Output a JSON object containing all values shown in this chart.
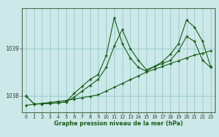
{
  "title": "Graphe pression niveau de la mer (hPa)",
  "background_color": "#cce8e8",
  "grid_color": "#99cccc",
  "line_color": "#1a5c1a",
  "xlim": [
    -0.5,
    23.5
  ],
  "ylim": [
    1037.65,
    1039.85
  ],
  "yticks": [
    1038,
    1039
  ],
  "xticks": [
    0,
    1,
    2,
    3,
    4,
    5,
    6,
    7,
    8,
    9,
    10,
    11,
    12,
    13,
    14,
    15,
    16,
    17,
    18,
    19,
    20,
    21,
    22,
    23
  ],
  "series1_x": [
    0,
    1,
    2,
    3,
    4,
    5,
    6,
    7,
    8,
    9,
    10,
    11,
    12,
    13,
    14,
    15,
    16,
    17,
    18,
    19,
    20,
    21,
    22,
    23
  ],
  "series1_y": [
    1037.8,
    1037.82,
    1037.84,
    1037.86,
    1037.88,
    1037.9,
    1037.93,
    1037.96,
    1037.99,
    1038.02,
    1038.1,
    1038.18,
    1038.26,
    1038.34,
    1038.42,
    1038.5,
    1038.56,
    1038.62,
    1038.68,
    1038.74,
    1038.8,
    1038.86,
    1038.9,
    1038.95
  ],
  "series2_x": [
    0,
    1,
    2,
    3,
    4,
    5,
    6,
    7,
    8,
    9,
    10,
    11,
    12,
    13,
    14,
    15,
    16,
    17,
    18,
    19,
    20,
    21,
    22,
    23
  ],
  "series2_y": [
    1038.0,
    1037.83,
    1037.83,
    1037.84,
    1037.85,
    1037.87,
    1037.97,
    1038.1,
    1038.22,
    1038.35,
    1038.6,
    1039.05,
    1039.4,
    1039.0,
    1038.75,
    1038.55,
    1038.62,
    1038.68,
    1038.75,
    1038.95,
    1039.25,
    1039.15,
    1038.75,
    1038.6
  ],
  "series3_x": [
    0,
    1,
    2,
    3,
    4,
    5,
    6,
    7,
    8,
    9,
    10,
    11,
    12,
    13,
    14,
    15,
    16,
    17,
    18,
    19,
    20,
    21,
    22,
    23
  ],
  "series3_y": [
    1038.0,
    1037.83,
    1037.83,
    1037.84,
    1037.85,
    1037.87,
    1038.05,
    1038.2,
    1038.35,
    1038.45,
    1038.85,
    1039.65,
    1039.1,
    1038.8,
    1038.6,
    1038.52,
    1038.62,
    1038.72,
    1038.88,
    1039.1,
    1039.6,
    1039.45,
    1039.15,
    1038.62
  ]
}
